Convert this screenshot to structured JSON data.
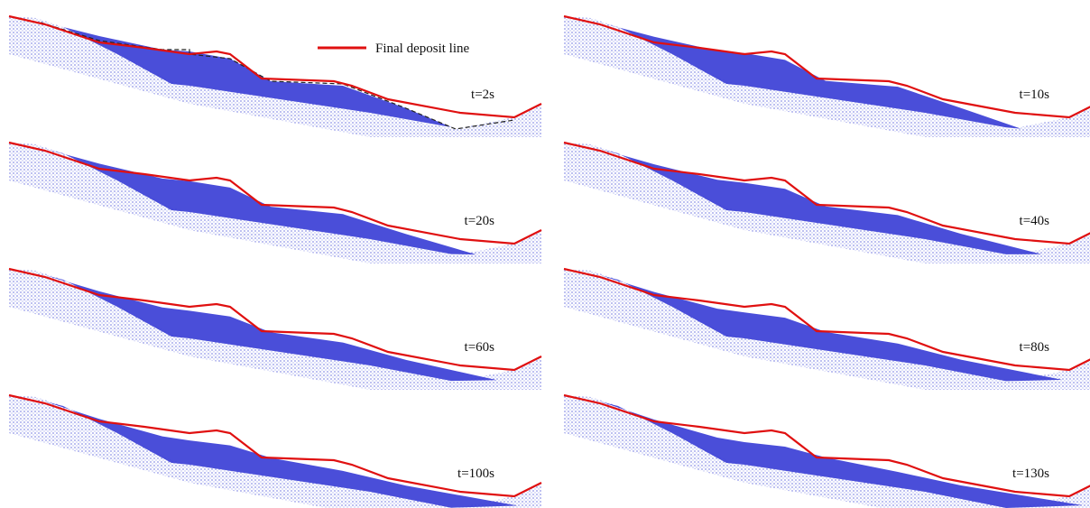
{
  "legend": {
    "label": "Final deposit line"
  },
  "panels": [
    {
      "label": "t=2s"
    },
    {
      "label": "t=10s"
    },
    {
      "label": "t=20s"
    },
    {
      "label": "t=40s"
    },
    {
      "label": "t=60s"
    },
    {
      "label": "t=80s"
    },
    {
      "label": "t=100s"
    },
    {
      "label": "t=130s"
    }
  ]
}
